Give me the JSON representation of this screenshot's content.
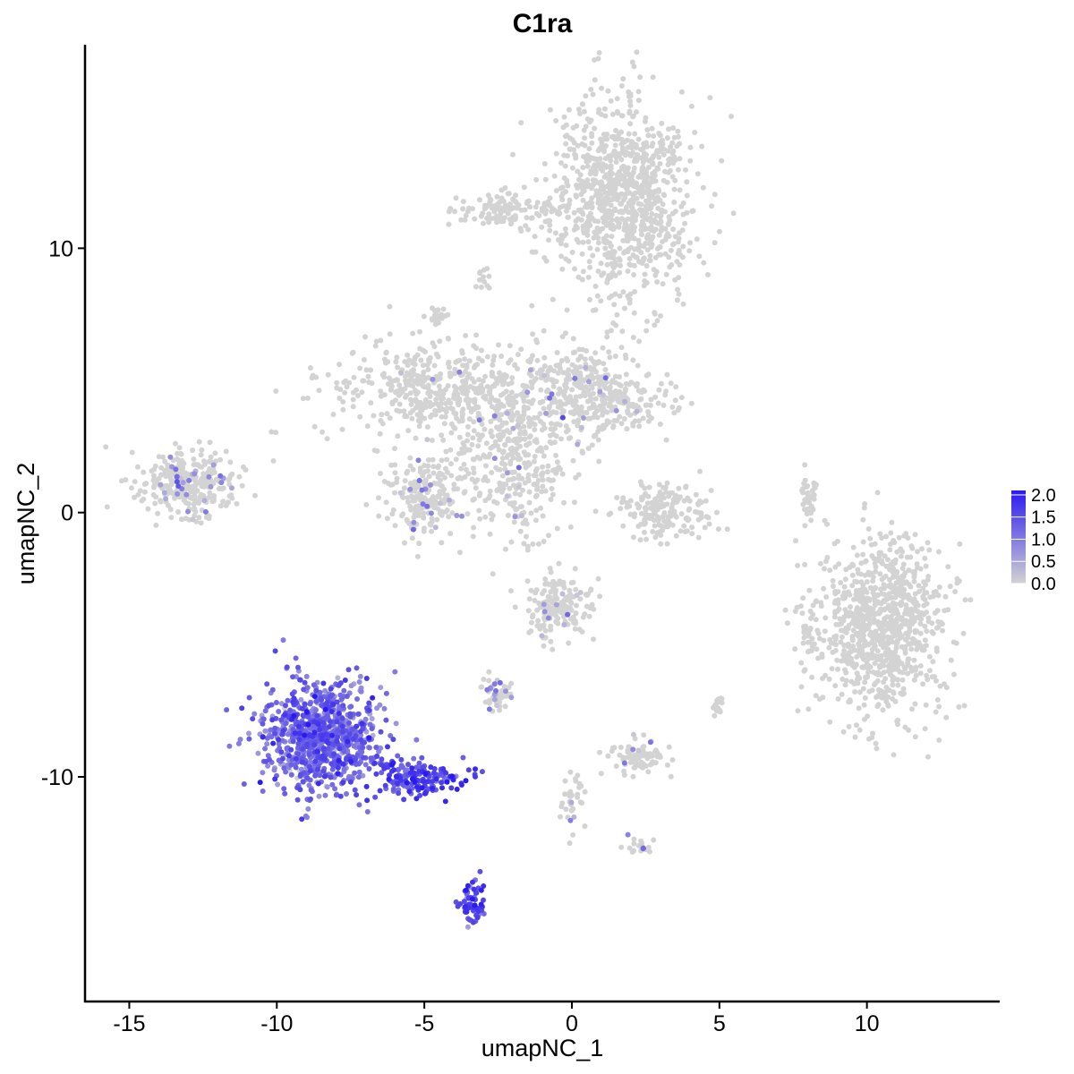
{
  "chart_data": {
    "type": "scatter",
    "title": "C1ra",
    "xlabel": "umapNC_1",
    "ylabel": "umapNC_2",
    "xlim": [
      -16.5,
      14.5
    ],
    "ylim": [
      -18.5,
      17.7
    ],
    "x_ticks": [
      -15,
      -10,
      -5,
      0,
      5,
      10
    ],
    "x_tick_labels": [
      "-15",
      "-10",
      "-5",
      "0",
      "5",
      "10"
    ],
    "y_ticks": [
      -10,
      0,
      10
    ],
    "y_tick_labels": [
      "-10",
      "0",
      "10"
    ],
    "grid": false,
    "legend": {
      "placement": "right",
      "type": "continuous colorbar",
      "range": [
        0.0,
        2.1
      ],
      "breaks": [
        0.0,
        0.5,
        1.0,
        1.5,
        2.0
      ],
      "break_labels": [
        "0.0",
        "0.5",
        "1.0",
        "1.5",
        "2.0"
      ],
      "low_color": "#d3d3d3",
      "high_color": "#2b1af0"
    },
    "colors": {
      "low": "#d3d3d3",
      "high": "#2b1af0"
    },
    "clusters": [
      {
        "cx": 1.7,
        "cy": 12.0,
        "sx": 1.4,
        "sy": 2.2,
        "n": 950,
        "expr": 0.0,
        "expr_frac": 0.0
      },
      {
        "cx": -2.0,
        "cy": 11.5,
        "sx": 1.1,
        "sy": 0.4,
        "n": 120,
        "expr": 0.0,
        "expr_frac": 0.0
      },
      {
        "cx": -4.5,
        "cy": 4.6,
        "sx": 2.2,
        "sy": 1.0,
        "n": 450,
        "expr": 0.3,
        "expr_frac": 0.02
      },
      {
        "cx": -2.0,
        "cy": 2.3,
        "sx": 1.3,
        "sy": 2.0,
        "n": 450,
        "expr": 0.6,
        "expr_frac": 0.05
      },
      {
        "cx": 0.5,
        "cy": 4.7,
        "sx": 1.0,
        "sy": 1.1,
        "n": 250,
        "expr": 0.4,
        "expr_frac": 0.03
      },
      {
        "cx": 1.8,
        "cy": 4.2,
        "sx": 1.0,
        "sy": 0.5,
        "n": 120,
        "expr": 0.4,
        "expr_frac": 0.03
      },
      {
        "cx": -5.0,
        "cy": 0.6,
        "sx": 0.7,
        "sy": 0.9,
        "n": 200,
        "expr": 0.7,
        "expr_frac": 0.08
      },
      {
        "cx": -13.0,
        "cy": 1.1,
        "sx": 1.0,
        "sy": 0.7,
        "n": 320,
        "expr": 0.7,
        "expr_frac": 0.1
      },
      {
        "cx": 3.2,
        "cy": 0.0,
        "sx": 0.9,
        "sy": 0.6,
        "n": 170,
        "expr": 0.0,
        "expr_frac": 0.0
      },
      {
        "cx": 8.0,
        "cy": 0.4,
        "sx": 0.2,
        "sy": 0.6,
        "n": 40,
        "expr": 0.0,
        "expr_frac": 0.0
      },
      {
        "cx": 10.5,
        "cy": -4.2,
        "sx": 1.2,
        "sy": 1.9,
        "n": 900,
        "expr": 0.0,
        "expr_frac": 0.0
      },
      {
        "cx": 8.0,
        "cy": -4.5,
        "sx": 0.3,
        "sy": 0.6,
        "n": 35,
        "expr": 0.0,
        "expr_frac": 0.0
      },
      {
        "cx": -0.5,
        "cy": -3.6,
        "sx": 0.6,
        "sy": 0.7,
        "n": 170,
        "expr": 0.6,
        "expr_frac": 0.05
      },
      {
        "cx": -8.5,
        "cy": -8.4,
        "sx": 1.1,
        "sy": 1.2,
        "n": 900,
        "expr": 1.2,
        "expr_frac": 0.98
      },
      {
        "cx": -5.2,
        "cy": -10.0,
        "sx": 0.9,
        "sy": 0.4,
        "n": 160,
        "expr": 1.6,
        "expr_frac": 1.0
      },
      {
        "cx": -3.4,
        "cy": -14.7,
        "sx": 0.25,
        "sy": 0.5,
        "n": 60,
        "expr": 1.6,
        "expr_frac": 1.0
      },
      {
        "cx": -2.5,
        "cy": -6.9,
        "sx": 0.3,
        "sy": 0.3,
        "n": 50,
        "expr": 0.8,
        "expr_frac": 0.25
      },
      {
        "cx": 2.3,
        "cy": -9.2,
        "sx": 0.6,
        "sy": 0.4,
        "n": 80,
        "expr": 0.7,
        "expr_frac": 0.1
      },
      {
        "cx": 2.4,
        "cy": -12.6,
        "sx": 0.3,
        "sy": 0.2,
        "n": 20,
        "expr": 0.6,
        "expr_frac": 0.3
      },
      {
        "cx": 0.0,
        "cy": -11.0,
        "sx": 0.3,
        "sy": 0.8,
        "n": 35,
        "expr": 0.5,
        "expr_frac": 0.25
      },
      {
        "cx": -4.5,
        "cy": 7.4,
        "sx": 0.2,
        "sy": 0.15,
        "n": 25,
        "expr": 0.0,
        "expr_frac": 0.0
      },
      {
        "cx": 5.0,
        "cy": -7.3,
        "sx": 0.15,
        "sy": 0.2,
        "n": 15,
        "expr": 0.0,
        "expr_frac": 0.0
      },
      {
        "cx": -3.0,
        "cy": 8.8,
        "sx": 0.2,
        "sy": 0.3,
        "n": 12,
        "expr": 0.0,
        "expr_frac": 0.0
      }
    ]
  }
}
